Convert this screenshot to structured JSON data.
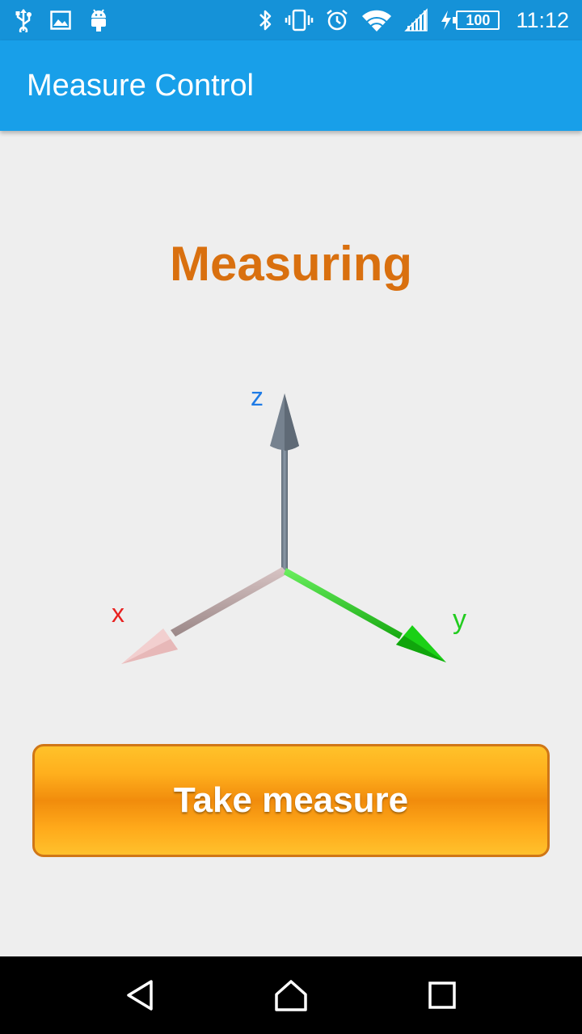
{
  "status_bar": {
    "time": "11:12",
    "battery_level": "100",
    "left_icons": [
      "usb-icon",
      "image-icon",
      "android-icon"
    ],
    "right_icons": [
      "bluetooth-icon",
      "vibrate-icon",
      "alarm-icon",
      "wifi-icon",
      "cell-signal-icon",
      "charging-icon",
      "battery-icon"
    ]
  },
  "app_bar": {
    "title": "Measure Control"
  },
  "main": {
    "status_text": "Measuring",
    "axes": {
      "x_label": "x",
      "y_label": "y",
      "z_label": "z",
      "x_color": "#e8201f",
      "y_color": "#22cc1f",
      "z_color": "#1e7be6"
    },
    "action_button_label": "Take measure"
  },
  "nav_bar": {
    "icons": [
      "back-icon",
      "home-icon",
      "recents-icon"
    ]
  },
  "colors": {
    "status_bar": "#1592d8",
    "app_bar": "#189fe9",
    "accent": "#d9700f",
    "background": "#eeeeee"
  }
}
